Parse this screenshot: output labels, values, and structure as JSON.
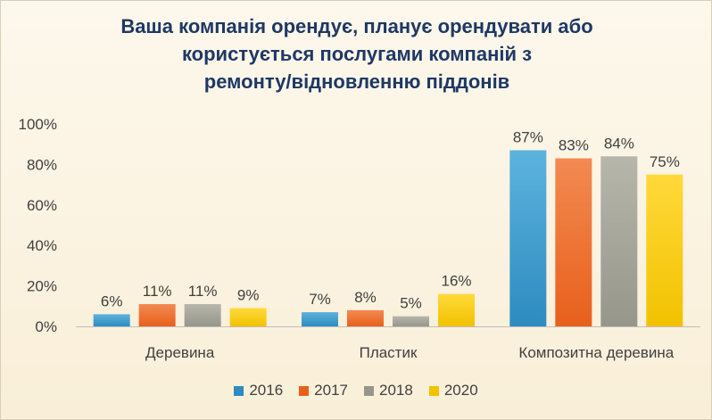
{
  "chart_data": {
    "type": "bar",
    "title_lines": [
      "Ваша компанія орендує, планує орендувати або",
      "користується послугами компаній з",
      "ремонту/відновленню піддонів"
    ],
    "categories": [
      "Деревина",
      "Пластик",
      "Композитна деревина"
    ],
    "series": [
      {
        "name": "2016",
        "values": [
          6,
          7,
          87
        ],
        "labels": [
          "6%",
          "7%",
          "87%"
        ],
        "color": "#2e8bc0",
        "color_light": "#5cb3dd"
      },
      {
        "name": "2017",
        "values": [
          11,
          8,
          83
        ],
        "labels": [
          "11%",
          "8%",
          "83%"
        ],
        "color": "#e8601c",
        "color_light": "#f28a52"
      },
      {
        "name": "2018",
        "values": [
          11,
          5,
          84
        ],
        "labels": [
          "11%",
          "5%",
          "84%"
        ],
        "color": "#97968a",
        "color_light": "#b7b6aa"
      },
      {
        "name": "2020",
        "values": [
          9,
          16,
          75
        ],
        "labels": [
          "9%",
          "16%",
          "75%"
        ],
        "color": "#f2c200",
        "color_light": "#ffd93a"
      }
    ],
    "yticks": [
      "0%",
      "20%",
      "40%",
      "60%",
      "80%",
      "100%"
    ],
    "ylim": [
      0,
      100
    ],
    "grid": false,
    "legend_position": "bottom"
  }
}
